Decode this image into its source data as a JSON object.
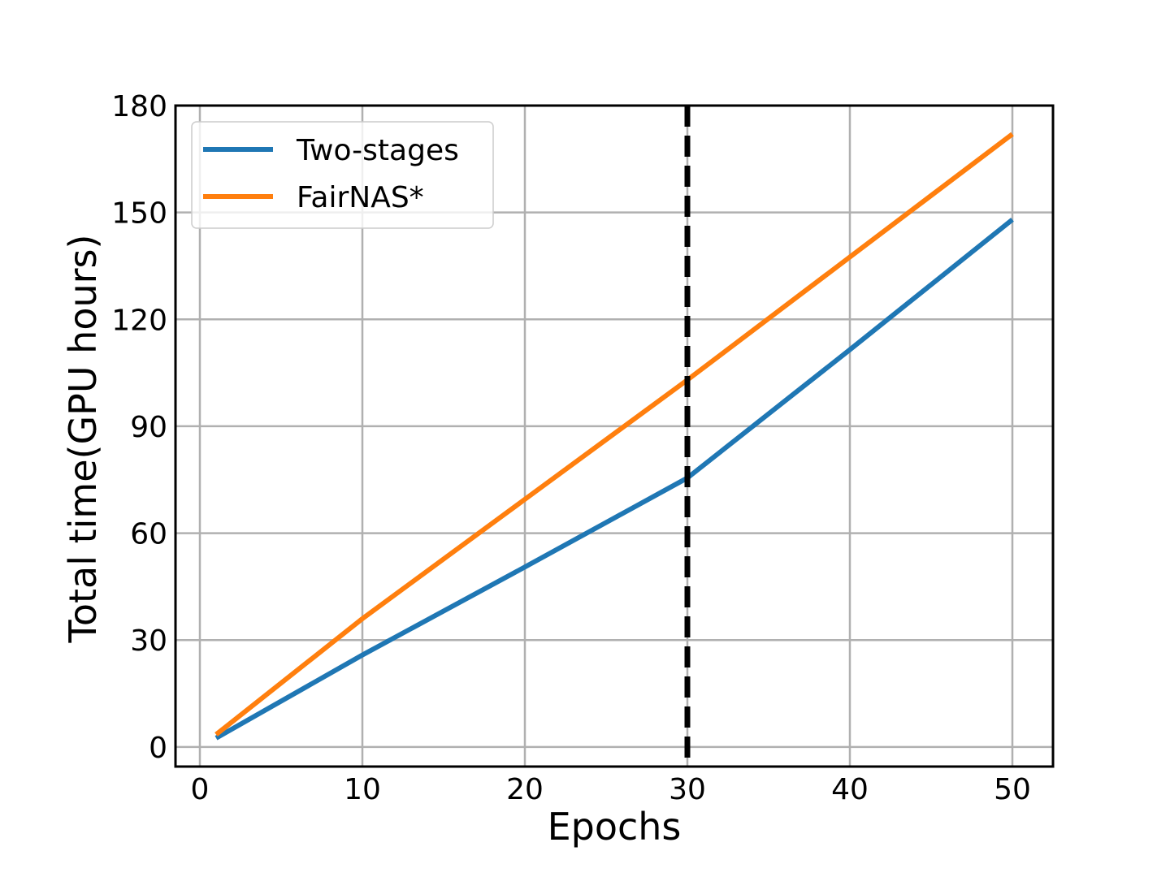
{
  "chart_data": {
    "type": "line",
    "xlabel": "Epochs",
    "ylabel": "Total time(GPU hours)",
    "xlim": [
      -1.5,
      52.5
    ],
    "ylim": [
      -5.5,
      180
    ],
    "xticks": [
      0,
      10,
      20,
      30,
      40,
      50
    ],
    "yticks": [
      0,
      30,
      60,
      90,
      120,
      150,
      180
    ],
    "grid": true,
    "legend_position": "top-left",
    "vline": {
      "x": 30,
      "style": "dashed",
      "color": "#000000"
    },
    "series": [
      {
        "name": "Two-stages",
        "color": "#1f77b4",
        "x": [
          1,
          10,
          20,
          30,
          40,
          50
        ],
        "y": [
          2.5,
          25.8,
          50.5,
          75.5,
          111.5,
          148
        ]
      },
      {
        "name": "FairNAS*",
        "color": "#ff7f0e",
        "x": [
          1,
          10,
          20,
          30,
          40,
          50
        ],
        "y": [
          3.5,
          36.0,
          69.5,
          103.0,
          137.5,
          172
        ]
      }
    ]
  }
}
